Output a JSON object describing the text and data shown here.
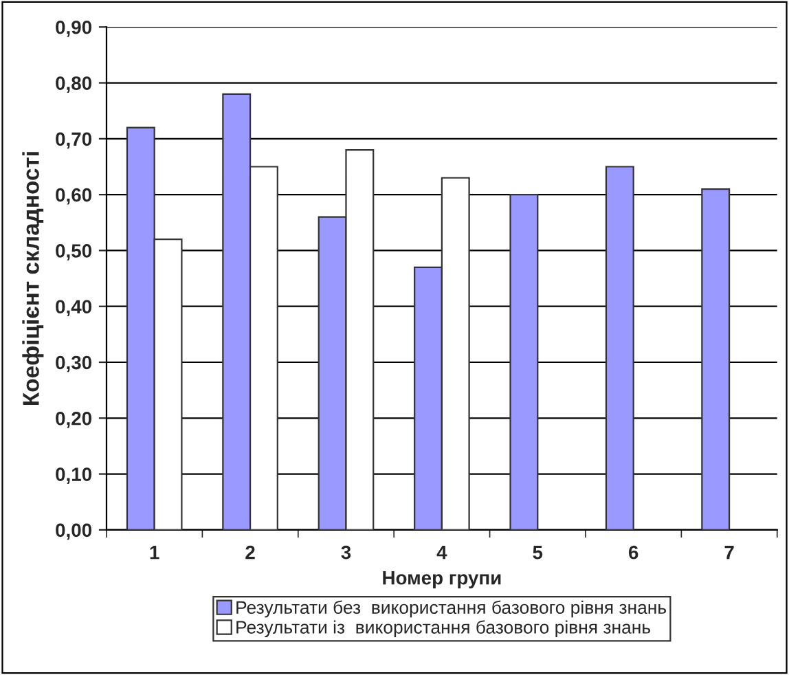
{
  "chart_data": {
    "type": "bar",
    "xlabel": "Номер групи",
    "ylabel": "Коефіцієнт складності",
    "categories": [
      "1",
      "2",
      "3",
      "4",
      "5",
      "6",
      "7"
    ],
    "series": [
      {
        "name": "Результати без  використання базового рівня знань",
        "color": "#9999ff",
        "values": [
          0.72,
          0.78,
          0.56,
          0.47,
          0.6,
          0.65,
          0.61
        ]
      },
      {
        "name": "Результати із  використання базового рівня знань",
        "color": "#ffffff",
        "values": [
          0.52,
          0.65,
          0.68,
          0.63,
          null,
          null,
          null
        ]
      }
    ],
    "ylim": [
      0,
      0.9
    ],
    "yticks": [
      {
        "value": 0,
        "label": "0,00"
      },
      {
        "value": 0.1,
        "label": "0,10"
      },
      {
        "value": 0.2,
        "label": "0,20"
      },
      {
        "value": 0.3,
        "label": "0,30"
      },
      {
        "value": 0.4,
        "label": "0,40"
      },
      {
        "value": 0.5,
        "label": "0,50"
      },
      {
        "value": 0.6,
        "label": "0,60"
      },
      {
        "value": 0.7,
        "label": "0,70"
      },
      {
        "value": 0.8,
        "label": "0,80"
      },
      {
        "value": 0.9,
        "label": "0,90"
      }
    ],
    "grid": "y",
    "legend": "bottom"
  }
}
